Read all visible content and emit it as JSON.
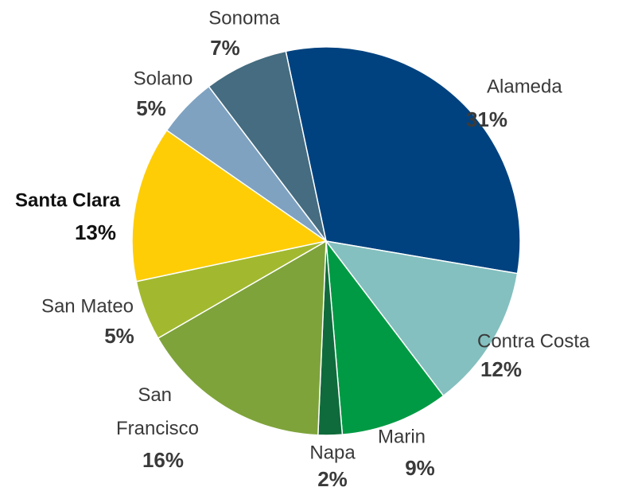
{
  "chart_data": {
    "type": "pie",
    "categories": [
      "Alameda",
      "Contra Costa",
      "Marin",
      "Napa",
      "San Francisco",
      "San Mateo",
      "Santa Clara",
      "Solano",
      "Sonoma"
    ],
    "values": [
      31,
      12,
      9,
      2,
      16,
      5,
      13,
      5,
      7
    ],
    "value_labels": [
      "31%",
      "12%",
      "9%",
      "2%",
      "16%",
      "5%",
      "13%",
      "5%",
      "7%"
    ],
    "colors": [
      "#00427f",
      "#84c0bf",
      "#009a44",
      "#0f6b3b",
      "#7ea33b",
      "#a2b92f",
      "#fecd06",
      "#7fa2c1",
      "#456c80"
    ]
  }
}
